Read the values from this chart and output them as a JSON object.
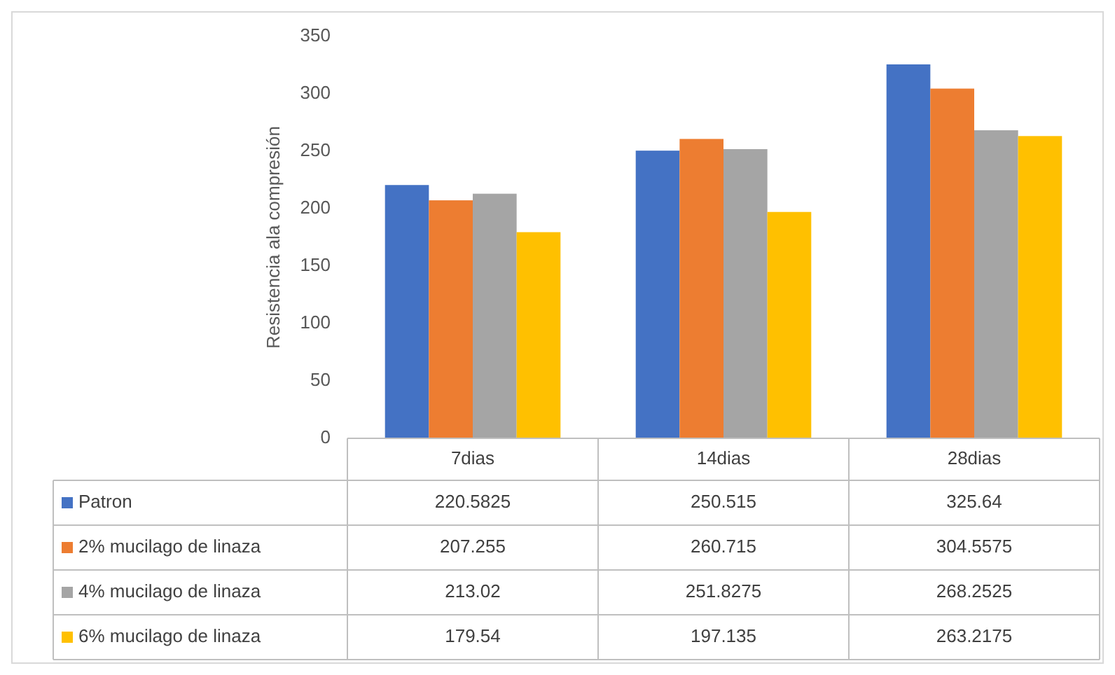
{
  "chart_data": {
    "type": "bar",
    "ylabel": "Resistencia ala compresión",
    "categories": [
      "7dias",
      "14dias",
      "28dias"
    ],
    "series": [
      {
        "name": "Patron",
        "color": "#4472c4",
        "values": [
          220.5825,
          250.515,
          325.64
        ]
      },
      {
        "name": "2% mucilago de linaza",
        "color": "#ed7d31",
        "values": [
          207.255,
          260.715,
          304.5575
        ]
      },
      {
        "name": "4% mucilago de linaza",
        "color": "#a5a5a5",
        "values": [
          213.02,
          251.8275,
          268.2525
        ]
      },
      {
        "name": "6% mucilago de linaza",
        "color": "#ffc000",
        "values": [
          179.54,
          197.135,
          263.2175
        ]
      }
    ],
    "ylim": [
      0,
      350
    ],
    "yticks": [
      0,
      50,
      100,
      150,
      200,
      250,
      300,
      350
    ],
    "data_labels": true,
    "legend": "bottom"
  }
}
